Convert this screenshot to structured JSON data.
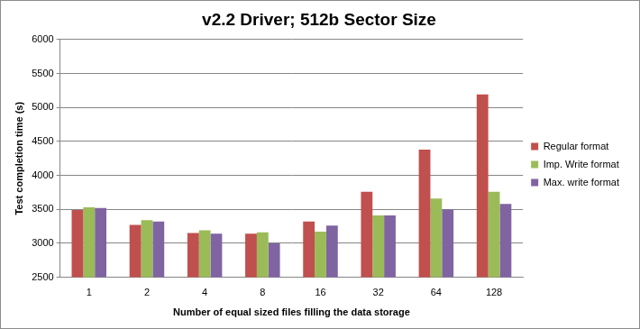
{
  "chart_data": {
    "type": "bar",
    "title": "v2.2 Driver; 512b Sector Size",
    "x_label": "Number of equal sized files filling the data storage",
    "y_label": "Test completion time (s)",
    "categories": [
      "1",
      "2",
      "4",
      "8",
      "16",
      "32",
      "64",
      "128"
    ],
    "series": [
      {
        "name": "Regular format",
        "color": "#c0504d",
        "values": [
          3490,
          3270,
          3150,
          3140,
          3320,
          3760,
          4380,
          5190
        ]
      },
      {
        "name": "Imp. Write format",
        "color": "#9bbb59",
        "values": [
          3530,
          3340,
          3190,
          3160,
          3170,
          3410,
          3660,
          3760
        ]
      },
      {
        "name": "Max. write format",
        "color": "#8064a2",
        "values": [
          3520,
          3320,
          3140,
          3000,
          3260,
          3410,
          3500,
          3580
        ]
      }
    ],
    "ylim": [
      2500,
      6000
    ],
    "yticks": [
      2500,
      3000,
      3500,
      4000,
      4500,
      5000,
      5500,
      6000
    ],
    "grid": true,
    "legend": "right"
  }
}
